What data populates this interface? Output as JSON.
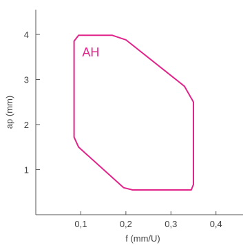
{
  "chart_data": {
    "type": "area",
    "title": "",
    "xlabel": "f (mm/U)",
    "ylabel": "ap (mm)",
    "xlim": [
      0,
      0.46
    ],
    "ylim": [
      0,
      4.55
    ],
    "x_ticks": [
      0.1,
      0.2,
      0.3,
      0.4
    ],
    "x_tick_labels": [
      "0,1",
      "0,2",
      "0,3",
      "0,4"
    ],
    "y_ticks": [
      1,
      2,
      3,
      4
    ],
    "y_tick_labels": [
      "1",
      "2",
      "3",
      "4"
    ],
    "grid": false,
    "regions": [
      {
        "label": "AH",
        "color": "#e0248a",
        "label_position": [
          0.122,
          3.6
        ],
        "points": [
          [
            0.085,
            3.85
          ],
          [
            0.095,
            3.98
          ],
          [
            0.17,
            3.98
          ],
          [
            0.2,
            3.88
          ],
          [
            0.33,
            2.85
          ],
          [
            0.35,
            2.5
          ],
          [
            0.35,
            0.67
          ],
          [
            0.345,
            0.55
          ],
          [
            0.215,
            0.55
          ],
          [
            0.195,
            0.6
          ],
          [
            0.095,
            1.5
          ],
          [
            0.085,
            1.72
          ]
        ]
      }
    ]
  }
}
